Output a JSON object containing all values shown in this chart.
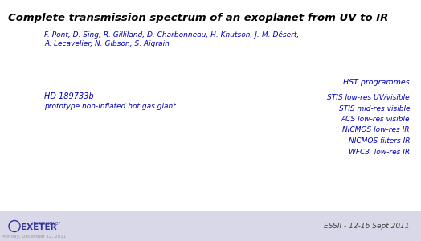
{
  "title": "Complete transmission spectrum of an exoplanet from UV to IR",
  "title_color": "#000000",
  "title_fontsize": 9.5,
  "authors_line1": "F. Pont, D. Sing, R. Gilliland, D. Charbonneau, H. Knutson, J.-M. Désert,",
  "authors_line2": "A. Lecavelier, N. Gibson, S. Aigrain",
  "authors_color": "#0000bb",
  "authors_fontsize": 6.5,
  "hst_label": "HST programmes",
  "hst_color": "#0000bb",
  "hst_fontsize": 6.8,
  "planet_name": "HD 189733b",
  "planet_desc": "prototype non-inflated hot gas giant",
  "planet_color": "#0000bb",
  "planet_name_fontsize": 7.0,
  "planet_desc_fontsize": 6.5,
  "instruments": [
    "STIS low-res UV/visible",
    "STIS mid-res visible",
    "ACS low-res visible",
    "NICMOS low-res IR",
    "NICMOS filters IR",
    "WFC3  low-res IR"
  ],
  "instruments_color": "#0000bb",
  "instruments_fontsize": 6.5,
  "footer_bg": "#d8d8e8",
  "footer_text": "ESSII - 12-16 Sept 2011",
  "footer_color": "#444444",
  "footer_fontsize": 6.5,
  "bg_color": "#ffffff",
  "date_text": "Monday, December 12, 2011",
  "date_color": "#999999",
  "date_fontsize": 4.0,
  "exeter_text": "UNIVERSITY OF\nEXETER",
  "exeter_color": "#333399",
  "exeter_fontsize": 4.5
}
